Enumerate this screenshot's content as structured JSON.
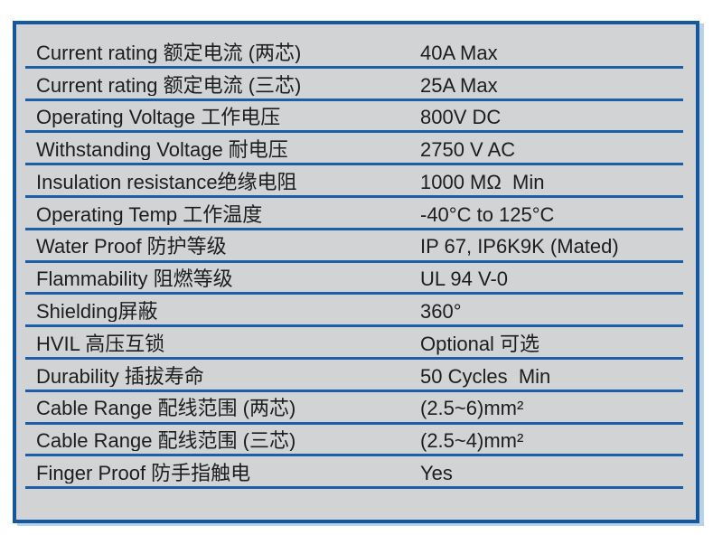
{
  "table": {
    "rows": [
      {
        "label": "Current rating 额定电流 (两芯)",
        "value": "40A Max"
      },
      {
        "label": "Current rating 额定电流 (三芯)",
        "value": "25A Max"
      },
      {
        "label": "Operating Voltage 工作电压",
        "value": "800V DC"
      },
      {
        "label": "Withstanding Voltage 耐电压",
        "value": "2750 V AC"
      },
      {
        "label": "Insulation resistance绝缘电阻",
        "value": "1000 MΩ  Min"
      },
      {
        "label": "Operating Temp 工作温度",
        "value": "-40°C to 125°C"
      },
      {
        "label": "Water Proof 防护等级",
        "value": "IP 67, IP6K9K (Mated)"
      },
      {
        "label": "Flammability 阻燃等级",
        "value": "UL 94 V-0"
      },
      {
        "label": "Shielding屏蔽",
        "value": "360°"
      },
      {
        "label": "HVIL 高压互锁",
        "value": "Optional 可选"
      },
      {
        "label": "Durability 插拔寿命",
        "value": "50 Cycles  Min"
      },
      {
        "label": "Cable Range 配线范围 (两芯)",
        "value": "(2.5~6)mm²"
      },
      {
        "label": "Cable Range 配线范围 (三芯)",
        "value": "(2.5~4)mm²"
      },
      {
        "label": "Finger Proof 防手指触电",
        "value": "Yes"
      }
    ],
    "colors": {
      "border": "#15589e",
      "divider": "#1c5fa8",
      "background": "#d2d3d5",
      "text": "#1d1d1d",
      "shadow": "#b9d3ea"
    }
  }
}
